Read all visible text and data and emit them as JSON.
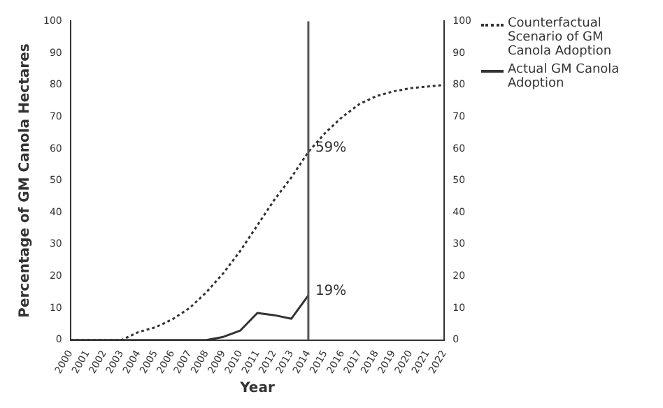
{
  "chart_data": {
    "type": "line",
    "xlabel": "Year",
    "ylabel": "Percentage of GM Canola Hectares",
    "x": [
      2000,
      2001,
      2002,
      2003,
      2004,
      2005,
      2006,
      2007,
      2008,
      2009,
      2010,
      2011,
      2012,
      2013,
      2014,
      2015,
      2016,
      2017,
      2018,
      2019,
      2020,
      2021,
      2022
    ],
    "series": [
      {
        "name": "Counterfactual Scenario of GM Canola Adoption",
        "color": "#333333",
        "line_style": "dotted",
        "values": [
          0,
          0,
          0,
          0,
          2.5,
          4,
          6.5,
          10,
          15,
          21,
          28,
          36,
          44,
          51,
          59,
          65,
          70,
          74,
          76.5,
          78,
          79,
          79.5,
          80
        ]
      },
      {
        "name": "Actual GM Canola Adoption",
        "color": "#333333",
        "line_style": "solid",
        "values": [
          0,
          0,
          0,
          0,
          0,
          0,
          0,
          0,
          0,
          1,
          3,
          8.5,
          7.8,
          6.7,
          14,
          null,
          null,
          null,
          null,
          null,
          null,
          null,
          null
        ]
      }
    ],
    "xlim": [
      2000,
      2022
    ],
    "xticks": [
      2000,
      2001,
      2002,
      2003,
      2004,
      2005,
      2006,
      2007,
      2008,
      2009,
      2010,
      2011,
      2012,
      2013,
      2014,
      2015,
      2016,
      2017,
      2018,
      2019,
      2020,
      2021,
      2022
    ],
    "ylim": [
      0,
      100
    ],
    "yticks": [
      0,
      10,
      20,
      30,
      40,
      50,
      60,
      70,
      80,
      90,
      100
    ],
    "y2lim": [
      0,
      100
    ],
    "y2ticks": [
      0,
      10,
      20,
      30,
      40,
      50,
      60,
      70,
      80,
      90,
      100
    ],
    "ref_lines": [
      {
        "axis": "x",
        "value": 2014,
        "color": "#555555"
      }
    ],
    "annotations": [
      {
        "text": "59%",
        "x": 2014,
        "y": 59
      },
      {
        "text": "19%",
        "x": 2014,
        "y": 14
      }
    ],
    "legend": "top right",
    "grid": false,
    "marker": "none"
  }
}
